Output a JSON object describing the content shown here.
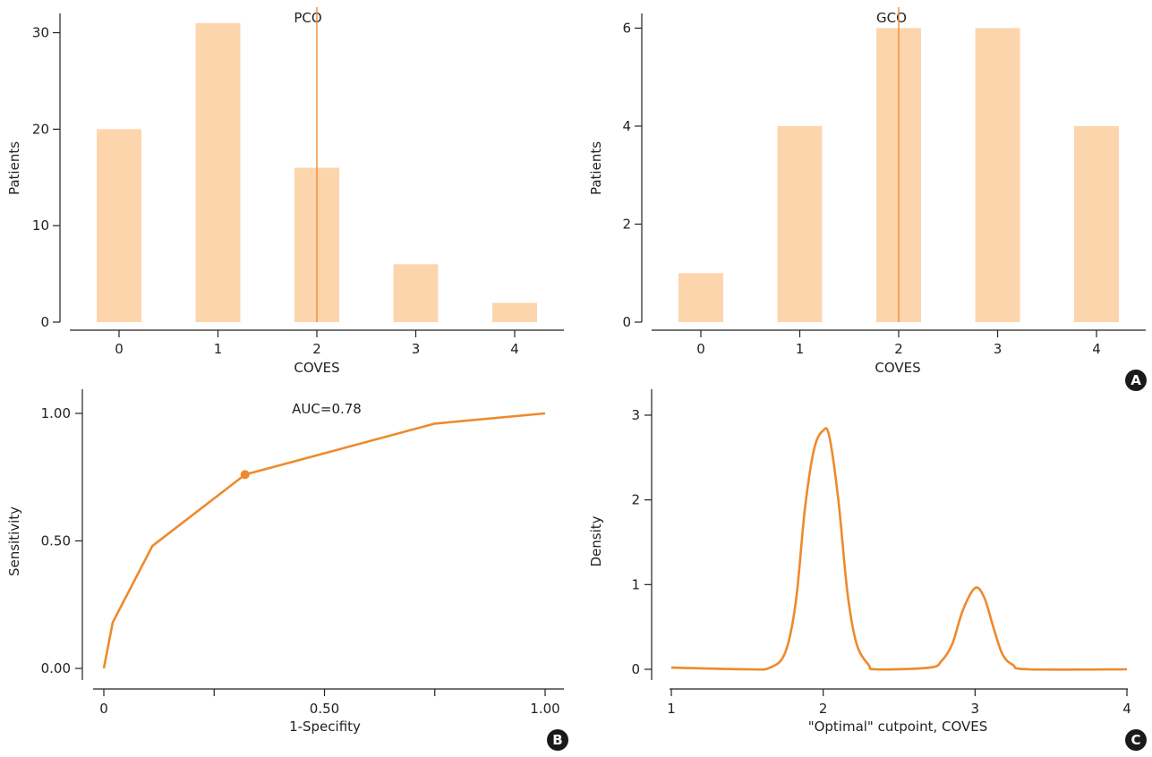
{
  "chart_data": [
    {
      "type": "bar",
      "title": "PCO",
      "xlabel": "COVES",
      "ylabel": "Patients",
      "categories": [
        "0",
        "1",
        "2",
        "3",
        "4"
      ],
      "values": [
        20,
        31,
        16,
        6,
        2
      ],
      "ylim": [
        0,
        32
      ],
      "yticks": [
        "0",
        "10",
        "20",
        "30"
      ],
      "cutpoint": 2,
      "badge": ""
    },
    {
      "type": "bar",
      "title": "GCO",
      "xlabel": "COVES",
      "ylabel": "Patients",
      "categories": [
        "0",
        "1",
        "2",
        "3",
        "4"
      ],
      "values": [
        1,
        4,
        6,
        6,
        4
      ],
      "ylim": [
        0,
        6.3
      ],
      "yticks": [
        "0",
        "2",
        "4",
        "6"
      ],
      "cutpoint": 2,
      "badge": "A"
    },
    {
      "type": "line",
      "title": "AUC=0.78",
      "xlabel": "1-Specifity",
      "ylabel": "Sensitivity",
      "x": [
        0,
        0.02,
        0.11,
        0.32,
        0.75,
        1.0
      ],
      "y": [
        0,
        0.18,
        0.48,
        0.76,
        0.96,
        1.0
      ],
      "highlight_point": {
        "x": 0.32,
        "y": 0.76
      },
      "xlim": [
        -0.05,
        1.0
      ],
      "ylim": [
        -0.05,
        1.08
      ],
      "xticks": [
        "0",
        "",
        "0.50",
        "",
        "1.00"
      ],
      "yticks": [
        "0.00",
        "0.50",
        "1.00"
      ],
      "badge": "B"
    },
    {
      "type": "line",
      "title": "",
      "xlabel": "\"Optimal\" cutpoint, COVES",
      "ylabel": "Density",
      "x": [
        1.0,
        1.5,
        1.65,
        1.75,
        1.82,
        1.88,
        1.94,
        2.0,
        2.04,
        2.1,
        2.16,
        2.22,
        2.3,
        2.35,
        2.7,
        2.78,
        2.85,
        2.92,
        3.0,
        3.06,
        3.12,
        3.18,
        3.25,
        3.35,
        4.0
      ],
      "y": [
        0.02,
        0.0,
        0.02,
        0.2,
        0.8,
        1.9,
        2.6,
        2.82,
        2.75,
        2.0,
        0.9,
        0.3,
        0.05,
        0.0,
        0.02,
        0.1,
        0.3,
        0.7,
        0.96,
        0.85,
        0.5,
        0.18,
        0.05,
        0.0,
        0.0
      ],
      "xlim": [
        0.95,
        4.0
      ],
      "ylim": [
        -0.1,
        3.2
      ],
      "xticks": [
        "1",
        "2",
        "3",
        "4"
      ],
      "yticks": [
        "0",
        "1",
        "2",
        "3"
      ],
      "badge": "C"
    }
  ]
}
